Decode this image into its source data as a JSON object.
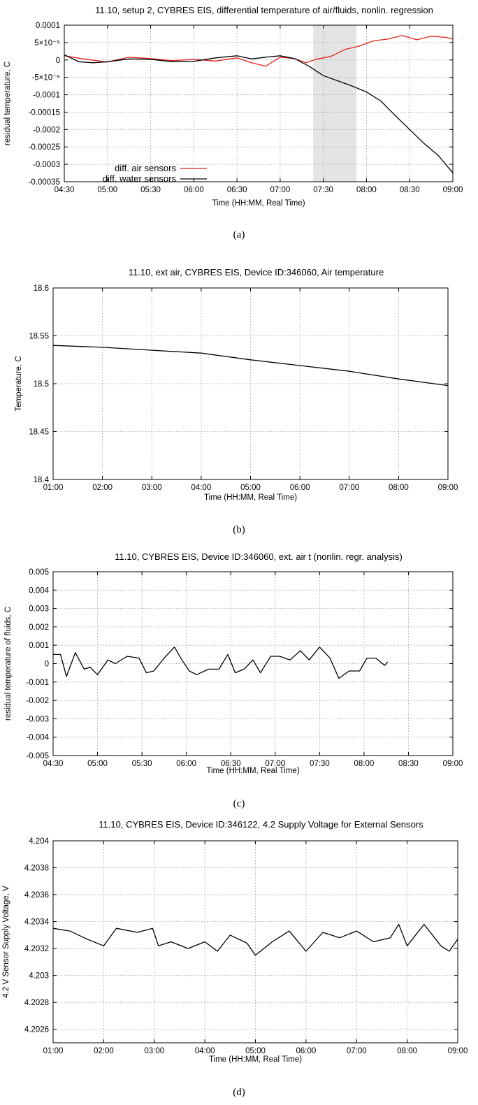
{
  "chart_data": [
    {
      "type": "line",
      "title": "11.10, setup 2, CYBRES EIS, differential temperature of air/fluids, nonlin. regression",
      "xlabel": "Time (HH:MM, Real Time)",
      "ylabel": "residual temperature, C",
      "caption": "(a)",
      "x_ticks": [
        "04:30",
        "05:00",
        "05:30",
        "06:00",
        "06:30",
        "07:00",
        "07:30",
        "08:00",
        "08:30",
        "09:00"
      ],
      "y_ticks": [
        "0.0001",
        "5×10⁻⁵",
        "0",
        "-5×10⁻⁵",
        "-0.0001",
        "-0.00015",
        "-0.0002",
        "-0.00025",
        "-0.0003",
        "-0.00035"
      ],
      "y_tick_values": [
        0.0001,
        5e-05,
        0,
        -5e-05,
        -0.0001,
        -0.00015,
        -0.0002,
        -0.00025,
        -0.0003,
        -0.00035
      ],
      "xlim_minutes": [
        270,
        540
      ],
      "ylim": [
        -0.00035,
        0.0001
      ],
      "grid": true,
      "legend_position": "bottom-left",
      "highlight_region": {
        "from_minutes": 443,
        "to_minutes": 473
      },
      "series": [
        {
          "name": "diff. air sensors",
          "color": "#e0221c",
          "points": [
            [
              270,
              1.2e-05
            ],
            [
              285,
              2e-06
            ],
            [
              300,
              -6e-06
            ],
            [
              315,
              8e-06
            ],
            [
              330,
              4e-06
            ],
            [
              345,
              -2e-06
            ],
            [
              360,
              2e-06
            ],
            [
              375,
              -3e-06
            ],
            [
              390,
              6e-06
            ],
            [
              400,
              -8e-06
            ],
            [
              410,
              -1.8e-05
            ],
            [
              420,
              8e-06
            ],
            [
              430,
              4e-06
            ],
            [
              438,
              -8e-06
            ],
            [
              445,
              2e-06
            ],
            [
              455,
              1e-05
            ],
            [
              465,
              3e-05
            ],
            [
              475,
              4e-05
            ],
            [
              485,
              5.5e-05
            ],
            [
              495,
              6e-05
            ],
            [
              505,
              7e-05
            ],
            [
              515,
              5.8e-05
            ],
            [
              525,
              6.8e-05
            ],
            [
              535,
              6.5e-05
            ],
            [
              540,
              6e-05
            ]
          ]
        },
        {
          "name": "diff. water sensors",
          "color": "#000000",
          "points": [
            [
              270,
              1.5e-05
            ],
            [
              280,
              -5e-06
            ],
            [
              290,
              -8e-06
            ],
            [
              300,
              -5e-06
            ],
            [
              315,
              3e-06
            ],
            [
              330,
              2e-06
            ],
            [
              345,
              -5e-06
            ],
            [
              360,
              -4e-06
            ],
            [
              375,
              6e-06
            ],
            [
              390,
              1.2e-05
            ],
            [
              400,
              3e-06
            ],
            [
              410,
              8e-06
            ],
            [
              420,
              1.2e-05
            ],
            [
              430,
              4e-06
            ],
            [
              440,
              -1.8e-05
            ],
            [
              450,
              -4.5e-05
            ],
            [
              460,
              -6e-05
            ],
            [
              470,
              -7.5e-05
            ],
            [
              480,
              -9.2e-05
            ],
            [
              490,
              -0.000118
            ],
            [
              500,
              -0.00016
            ],
            [
              510,
              -0.0002
            ],
            [
              520,
              -0.00024
            ],
            [
              530,
              -0.000275
            ],
            [
              540,
              -0.000325
            ]
          ]
        }
      ]
    },
    {
      "type": "line",
      "title": "11.10, ext air, CYBRES EIS, Device ID:346060, Air temperature",
      "xlabel": "Time (HH:MM, Real Time)",
      "ylabel": "Temperature, C",
      "caption": "(b)",
      "x_ticks": [
        "01:00",
        "02:00",
        "03:00",
        "04:00",
        "05:00",
        "06:00",
        "07:00",
        "08:00",
        "09:00"
      ],
      "y_ticks": [
        "18.6",
        "18.55",
        "18.5",
        "18.45",
        "18.4"
      ],
      "y_tick_values": [
        18.6,
        18.55,
        18.5,
        18.45,
        18.4
      ],
      "xlim_minutes": [
        60,
        540
      ],
      "ylim": [
        18.4,
        18.6
      ],
      "grid": true,
      "series": [
        {
          "color": "#000000",
          "points": [
            [
              60,
              18.54
            ],
            [
              120,
              18.538
            ],
            [
              180,
              18.535
            ],
            [
              240,
              18.532
            ],
            [
              300,
              18.525
            ],
            [
              360,
              18.519
            ],
            [
              420,
              18.513
            ],
            [
              480,
              18.505
            ],
            [
              540,
              18.498
            ]
          ]
        }
      ]
    },
    {
      "type": "line",
      "title": "11.10, CYBRES EIS, Device ID:346060, ext. air t (nonlin. regr. analysis)",
      "xlabel": "Time (HH:MM, Real Time)",
      "ylabel": "residual temperature of fluids, C",
      "caption": "(c)",
      "x_ticks": [
        "04:30",
        "05:00",
        "05:30",
        "06:00",
        "06:30",
        "07:00",
        "07:30",
        "08:00",
        "08:30",
        "09:00"
      ],
      "y_ticks": [
        "0.005",
        "0.004",
        "0.003",
        "0.002",
        "0.001",
        "0",
        "-0.001",
        "-0.002",
        "-0.003",
        "-0.004",
        "-0.005"
      ],
      "y_tick_values": [
        0.005,
        0.004,
        0.003,
        0.002,
        0.001,
        0,
        -0.001,
        -0.002,
        -0.003,
        -0.004,
        -0.005
      ],
      "xlim_minutes": [
        270,
        540
      ],
      "ylim": [
        -0.005,
        0.005
      ],
      "grid": true,
      "series": [
        {
          "color": "#000000",
          "points": [
            [
              270,
              0.0005
            ],
            [
              275,
              0.0005
            ],
            [
              279,
              -0.0007
            ],
            [
              285,
              0.0006
            ],
            [
              291,
              -0.0003
            ],
            [
              295,
              -0.0002
            ],
            [
              300,
              -0.0006
            ],
            [
              307,
              0.0002
            ],
            [
              312,
              0
            ],
            [
              320,
              0.0004
            ],
            [
              328,
              0.0003
            ],
            [
              333,
              -0.0005
            ],
            [
              338,
              -0.0004
            ],
            [
              345,
              0.0003
            ],
            [
              352,
              0.0009
            ],
            [
              357,
              0.0002
            ],
            [
              362,
              -0.0004
            ],
            [
              367,
              -0.0006
            ],
            [
              375,
              -0.0003
            ],
            [
              382,
              -0.0003
            ],
            [
              388,
              0.0005
            ],
            [
              393,
              -0.0005
            ],
            [
              399,
              -0.0003
            ],
            [
              405,
              0.0002
            ],
            [
              410,
              -0.0005
            ],
            [
              417,
              0.0004
            ],
            [
              423,
              0.0004
            ],
            [
              430,
              0.0002
            ],
            [
              437,
              0.0007
            ],
            [
              443,
              0.0002
            ],
            [
              450,
              0.0009
            ],
            [
              457,
              0.0003
            ],
            [
              463,
              -0.0008
            ],
            [
              470,
              -0.0004
            ],
            [
              477,
              -0.0004
            ],
            [
              482,
              0.0003
            ],
            [
              488,
              0.0003
            ],
            [
              494,
              -0.0001
            ],
            [
              496,
              0.0001
            ]
          ]
        }
      ]
    },
    {
      "type": "line",
      "title": "11.10, CYBRES EIS, Device ID:346122, 4.2 Supply Voltage for External Sensors",
      "xlabel": "Time (HH:MM, Real Time)",
      "ylabel": "4.2 V Sensor Supply Voltage, V",
      "caption": "(d)",
      "x_ticks": [
        "01:00",
        "02:00",
        "03:00",
        "04:00",
        "05:00",
        "06:00",
        "07:00",
        "08:00",
        "09:00"
      ],
      "y_ticks": [
        "4.204",
        "4.2038",
        "4.2036",
        "4.2034",
        "4.2032",
        "4.203",
        "4.2028",
        "4.2026"
      ],
      "y_tick_values": [
        4.204,
        4.2038,
        4.2036,
        4.2034,
        4.2032,
        4.203,
        4.2028,
        4.2026
      ],
      "xlim_minutes": [
        60,
        540
      ],
      "ylim": [
        4.2025,
        4.204
      ],
      "grid": true,
      "series": [
        {
          "color": "#000000",
          "points": [
            [
              60,
              4.20335
            ],
            [
              80,
              4.20333
            ],
            [
              100,
              4.20327
            ],
            [
              120,
              4.20322
            ],
            [
              135,
              4.20335
            ],
            [
              160,
              4.20332
            ],
            [
              178,
              4.20335
            ],
            [
              185,
              4.20322
            ],
            [
              200,
              4.20325
            ],
            [
              220,
              4.2032
            ],
            [
              240,
              4.20325
            ],
            [
              255,
              4.20318
            ],
            [
              270,
              4.2033
            ],
            [
              290,
              4.20324
            ],
            [
              300,
              4.20315
            ],
            [
              320,
              4.20325
            ],
            [
              340,
              4.20333
            ],
            [
              360,
              4.20318
            ],
            [
              380,
              4.20332
            ],
            [
              400,
              4.20328
            ],
            [
              420,
              4.20333
            ],
            [
              440,
              4.20325
            ],
            [
              460,
              4.20328
            ],
            [
              470,
              4.20338
            ],
            [
              480,
              4.20322
            ],
            [
              500,
              4.20338
            ],
            [
              520,
              4.20322
            ],
            [
              530,
              4.20318
            ],
            [
              540,
              4.20327
            ]
          ]
        }
      ]
    }
  ]
}
